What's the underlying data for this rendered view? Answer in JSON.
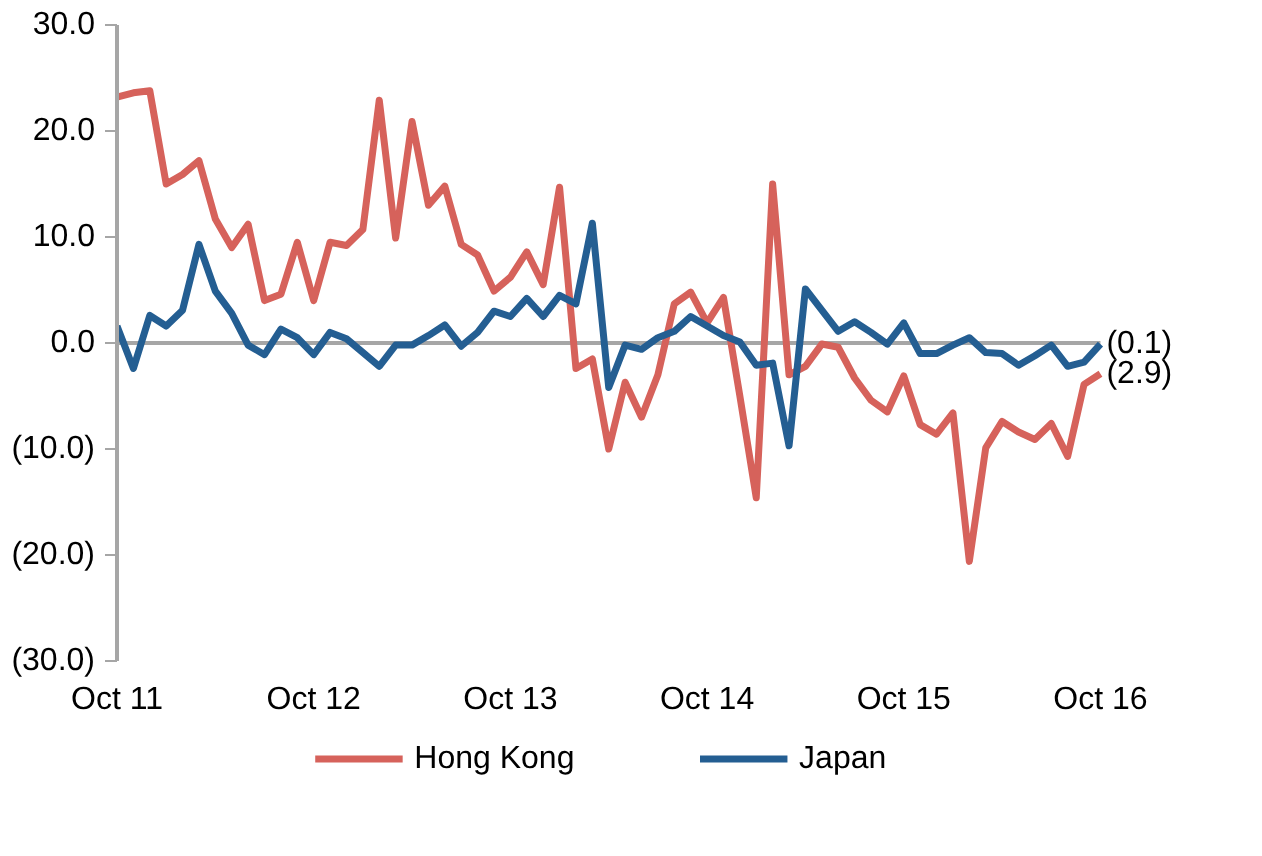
{
  "chart_data": {
    "type": "line",
    "categories": [
      "Oct 11",
      null,
      null,
      null,
      null,
      null,
      null,
      null,
      null,
      null,
      null,
      null,
      "Oct 12",
      null,
      null,
      null,
      null,
      null,
      null,
      null,
      null,
      null,
      null,
      null,
      "Oct 13",
      null,
      null,
      null,
      null,
      null,
      null,
      null,
      null,
      null,
      null,
      null,
      "Oct 14",
      null,
      null,
      null,
      null,
      null,
      null,
      null,
      null,
      null,
      null,
      null,
      "Oct 15",
      null,
      null,
      null,
      null,
      null,
      null,
      null,
      null,
      null,
      null,
      null,
      "Oct 16"
    ],
    "series": [
      {
        "name": "Hong Kong",
        "color": "#d6625b",
        "values": [
          23.2,
          23.6,
          23.8,
          15.0,
          15.9,
          17.2,
          11.7,
          9.0,
          11.2,
          4.0,
          4.6,
          9.5,
          4.0,
          9.5,
          9.2,
          10.7,
          22.9,
          9.9,
          20.9,
          13.0,
          14.8,
          9.3,
          8.3,
          4.9,
          6.2,
          8.6,
          5.5,
          14.7,
          -2.4,
          -1.5,
          -10.0,
          -3.7,
          -7.0,
          -3.0,
          3.7,
          4.8,
          1.9,
          4.3,
          -5.0,
          -14.6,
          15.0,
          -3.0,
          -2.2,
          -0.1,
          -0.4,
          -3.3,
          -5.4,
          -6.5,
          -3.1,
          -7.7,
          -8.6,
          -6.6,
          -20.6,
          -9.9,
          -7.4,
          -8.4,
          -9.1,
          -7.6,
          -10.7,
          -3.9,
          -2.9
        ]
      },
      {
        "name": "Japan",
        "color": "#245e92",
        "values": [
          1.6,
          -2.4,
          2.6,
          1.6,
          3.1,
          9.3,
          4.9,
          2.8,
          -0.2,
          -1.1,
          1.3,
          0.5,
          -1.1,
          1.0,
          0.4,
          -0.9,
          -2.2,
          -0.2,
          -0.2,
          0.7,
          1.7,
          -0.3,
          1.0,
          3.0,
          2.5,
          4.2,
          2.5,
          4.5,
          3.7,
          11.3,
          -4.2,
          -0.2,
          -0.6,
          0.5,
          1.1,
          2.5,
          1.6,
          0.7,
          0.1,
          -2.1,
          -1.9,
          -9.7,
          5.1,
          3.1,
          1.1,
          2.0,
          1.0,
          -0.1,
          1.9,
          -1.0,
          -1.0,
          -0.2,
          0.5,
          -0.9,
          -1.0,
          -2.1,
          -1.2,
          -0.2,
          -2.2,
          -1.8,
          -0.1
        ]
      }
    ],
    "annotations": [
      {
        "text": "(0.1)",
        "x": "Oct 16",
        "y": -0.1
      },
      {
        "text": "(2.9)",
        "x": "Oct 16",
        "y": -2.9
      }
    ],
    "ylim": [
      -30,
      30
    ],
    "yticks": [
      {
        "value": -30,
        "label": "(30.0)"
      },
      {
        "value": -20,
        "label": "(20.0)"
      },
      {
        "value": -10,
        "label": "(10.0)"
      },
      {
        "value": 0,
        "label": "0.0"
      },
      {
        "value": 10,
        "label": "10.0"
      },
      {
        "value": 20,
        "label": "20.0"
      },
      {
        "value": 30,
        "label": "30.0"
      }
    ],
    "ref_lines": [
      {
        "axis": "y",
        "value": 0,
        "color": "#a6a6a6"
      }
    ],
    "legend": "bottom"
  }
}
